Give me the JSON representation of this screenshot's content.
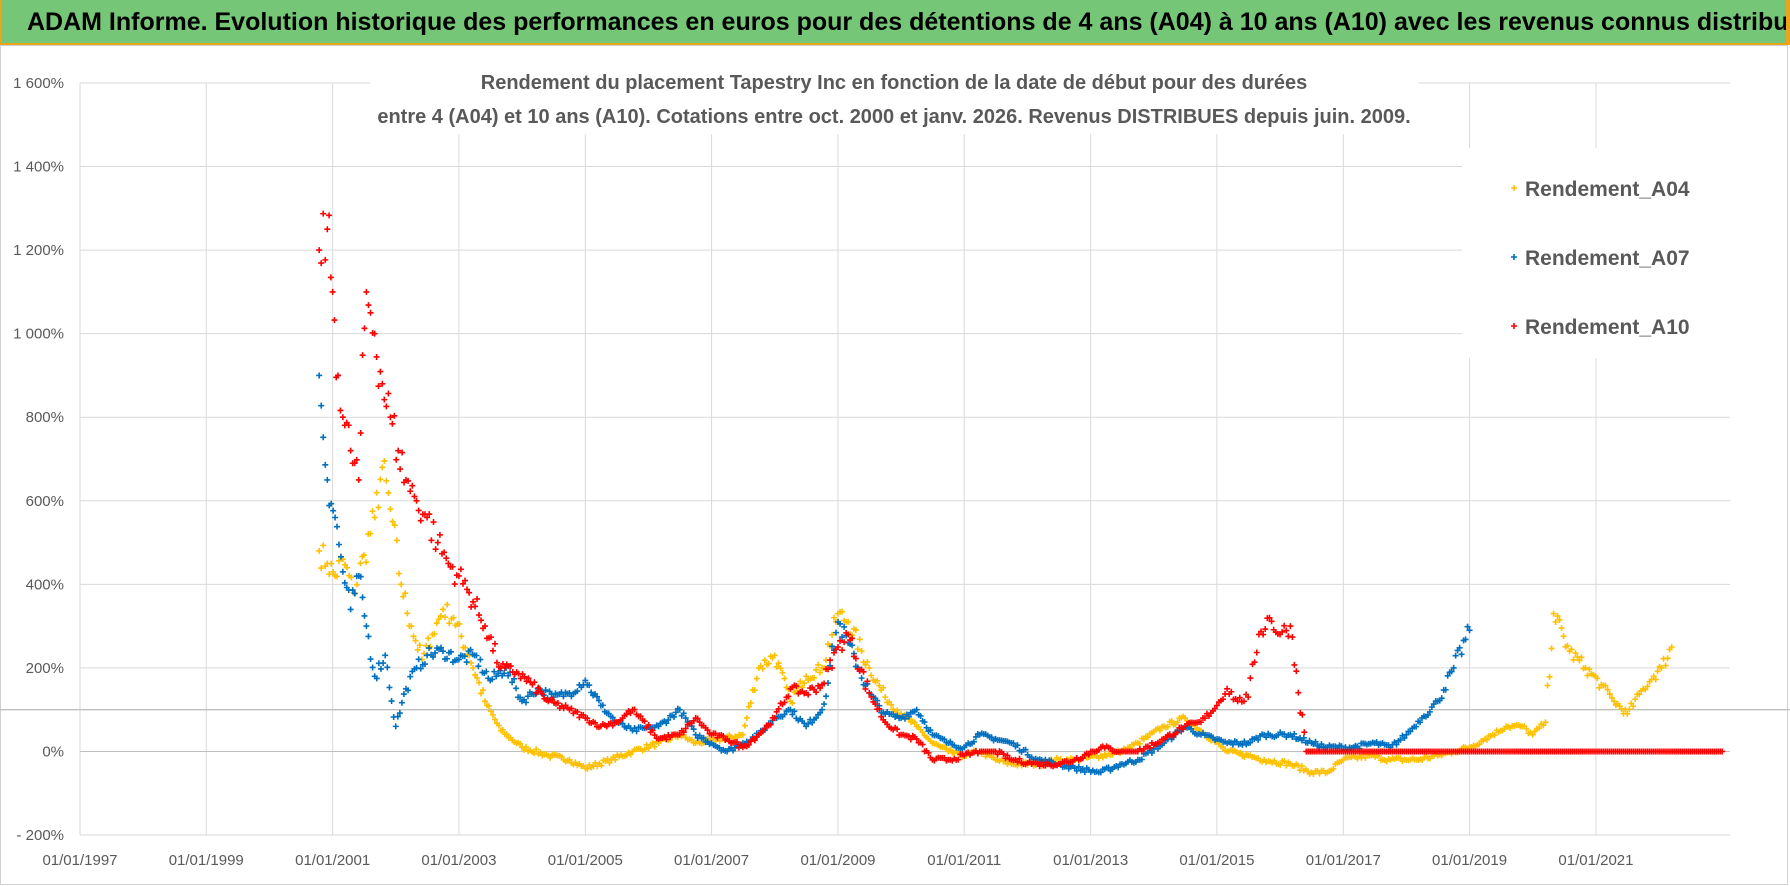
{
  "banner": {
    "title": "ADAM Informe. Evolution historique des performances en euros pour des détentions de 4 ans (A04) à 10 ans (A10) avec les revenus connus distribués"
  },
  "chart_data": {
    "type": "scatter",
    "title_line1": "Rendement du placement Tapestry Inc en fonction de la date de début pour des durées",
    "title_line2": "entre 4 (A04) et 10 ans (A10).  Cotations entre oct. 2000 et janv. 2026.  Revenus DISTRIBUES depuis juin. 2009.",
    "xlabel": "",
    "ylabel": "",
    "x_ticks": [
      "01/01/1997",
      "01/01/1999",
      "01/01/2001",
      "01/01/2003",
      "01/01/2005",
      "01/01/2007",
      "01/01/2009",
      "01/01/2011",
      "01/01/2013",
      "01/01/2015",
      "01/01/2017",
      "01/01/2019",
      "01/01/2021"
    ],
    "xlim": [
      "1997-01-01",
      "2023-02-15"
    ],
    "y_ticks": [
      "- 200%",
      "0%",
      "200%",
      "400%",
      "600%",
      "800%",
      "1 000%",
      "1 200%",
      "1 400%",
      "1 600%"
    ],
    "ylim": [
      -200,
      1600
    ],
    "grid": true,
    "legend_position": "top-right",
    "series": [
      {
        "name": "Rendement_A04",
        "color": "#ffc000",
        "marker": "+",
        "x": [
          "2000-10-15",
          "2000-12-01",
          "2001-01-15",
          "2001-03-01",
          "2001-05-01",
          "2001-06-01",
          "2001-07-01",
          "2001-09-01",
          "2001-10-15",
          "2001-12-01",
          "2002-02-01",
          "2002-04-01",
          "2002-06-01",
          "2002-08-01",
          "2002-10-01",
          "2002-12-01",
          "2003-03-01",
          "2003-06-01",
          "2003-09-01",
          "2004-01-01",
          "2004-06-01",
          "2004-10-01",
          "2005-01-01",
          "2005-06-01",
          "2005-10-01",
          "2006-03-01",
          "2006-07-01",
          "2006-10-01",
          "2007-03-01",
          "2007-07-01",
          "2007-10-01",
          "2008-01-01",
          "2008-04-01",
          "2008-07-01",
          "2008-10-01",
          "2009-01-01",
          "2009-03-01",
          "2009-07-01",
          "2009-10-01",
          "2010-01-01",
          "2010-04-01",
          "2010-07-01",
          "2010-10-01",
          "2011-01-01",
          "2011-04-01",
          "2011-07-01",
          "2011-10-01",
          "2012-03-01",
          "2012-07-01",
          "2012-10-01",
          "2013-03-01",
          "2013-07-01",
          "2013-10-01",
          "2014-03-01",
          "2014-07-01",
          "2014-10-01",
          "2015-03-01",
          "2015-07-01",
          "2015-10-01",
          "2016-03-01",
          "2016-07-01",
          "2016-10-01",
          "2017-01-01",
          "2017-06-01",
          "2017-10-01",
          "2018-03-01",
          "2018-07-01",
          "2018-10-01",
          "2019-01-01",
          "2019-04-01",
          "2019-08-01",
          "2019-11-01",
          "2020-01-01",
          "2020-03-15",
          "2020-05-01",
          "2020-08-01",
          "2020-11-01",
          "2021-02-01",
          "2021-04-15",
          "2021-07-01",
          "2021-10-01",
          "2021-12-01",
          "2022-01-15",
          "2022-03-15"
        ],
        "y": [
          480,
          450,
          420,
          460,
          380,
          420,
          470,
          560,
          680,
          580,
          400,
          300,
          220,
          280,
          340,
          320,
          230,
          120,
          50,
          10,
          -10,
          -20,
          -40,
          -20,
          0,
          20,
          40,
          20,
          30,
          40,
          200,
          230,
          120,
          180,
          200,
          330,
          310,
          200,
          130,
          90,
          60,
          20,
          0,
          -10,
          0,
          -20,
          -30,
          -30,
          -20,
          -20,
          -10,
          0,
          20,
          60,
          80,
          50,
          0,
          -10,
          -20,
          -30,
          -50,
          -50,
          -20,
          -10,
          -20,
          -20,
          -10,
          0,
          10,
          30,
          60,
          60,
          40,
          70,
          330,
          240,
          200,
          160,
          120,
          90,
          150,
          180,
          200,
          250
        ]
      },
      {
        "name": "Rendement_A07",
        "color": "#0070c0",
        "marker": "+",
        "x": [
          "2000-10-15",
          "2000-12-01",
          "2001-01-15",
          "2001-03-01",
          "2001-04-15",
          "2001-06-01",
          "2001-07-15",
          "2001-09-01",
          "2001-11-01",
          "2002-01-01",
          "2002-03-01",
          "2002-05-01",
          "2002-07-01",
          "2002-10-01",
          "2003-01-01",
          "2003-04-01",
          "2003-07-01",
          "2003-10-01",
          "2004-01-01",
          "2004-04-01",
          "2004-07-01",
          "2004-10-01",
          "2005-01-01",
          "2005-04-01",
          "2005-07-01",
          "2005-10-01",
          "2006-03-01",
          "2006-07-01",
          "2006-10-01",
          "2007-01-01",
          "2007-04-01",
          "2007-07-01",
          "2007-10-01",
          "2008-01-01",
          "2008-04-01",
          "2008-07-01",
          "2008-10-01",
          "2009-01-01",
          "2009-03-01",
          "2009-07-01",
          "2009-10-01",
          "2010-01-01",
          "2010-04-01",
          "2010-07-01",
          "2010-10-01",
          "2011-01-01",
          "2011-04-01",
          "2011-07-01",
          "2011-10-01",
          "2012-03-01",
          "2012-07-01",
          "2012-10-01",
          "2013-03-01",
          "2013-07-01",
          "2013-10-01",
          "2014-03-01",
          "2014-07-01",
          "2014-10-01",
          "2015-03-01",
          "2015-07-01",
          "2015-10-01",
          "2016-03-01",
          "2016-07-01",
          "2016-10-01",
          "2017-03-01",
          "2017-07-01",
          "2017-10-01",
          "2018-01-01",
          "2018-04-01",
          "2018-07-01",
          "2018-10-01",
          "2019-01-01"
        ],
        "y": [
          900,
          650,
          560,
          430,
          340,
          420,
          300,
          180,
          230,
          60,
          150,
          200,
          230,
          240,
          220,
          230,
          170,
          200,
          120,
          150,
          130,
          140,
          170,
          110,
          70,
          50,
          60,
          100,
          40,
          20,
          0,
          20,
          40,
          80,
          100,
          60,
          100,
          310,
          260,
          140,
          90,
          80,
          100,
          40,
          20,
          10,
          40,
          30,
          20,
          -20,
          -30,
          -40,
          -50,
          -30,
          -20,
          20,
          60,
          40,
          20,
          20,
          40,
          40,
          20,
          10,
          10,
          20,
          10,
          40,
          80,
          120,
          200,
          290
        ]
      },
      {
        "name": "Rendement_A10",
        "color": "#ff0000",
        "marker": "+",
        "x": [
          "2000-10-15",
          "2000-12-01",
          "2001-01-01",
          "2001-02-01",
          "2001-03-01",
          "2001-04-15",
          "2001-06-01",
          "2001-07-15",
          "2001-09-01",
          "2001-10-15",
          "2001-12-01",
          "2002-01-15",
          "2002-03-01",
          "2002-05-01",
          "2002-07-01",
          "2002-09-01",
          "2002-11-01",
          "2003-01-01",
          "2003-03-01",
          "2003-06-01",
          "2003-09-01",
          "2003-12-01",
          "2004-03-01",
          "2004-06-01",
          "2004-10-01",
          "2005-01-01",
          "2005-04-01",
          "2005-07-01",
          "2005-10-01",
          "2006-03-01",
          "2006-07-01",
          "2006-10-01",
          "2007-01-01",
          "2007-04-01",
          "2007-07-01",
          "2007-10-01",
          "2008-01-01",
          "2008-04-01",
          "2008-07-01",
          "2008-10-01",
          "2009-01-01",
          "2009-03-01",
          "2009-07-01",
          "2009-10-01",
          "2010-01-01",
          "2010-04-01",
          "2010-07-01",
          "2010-10-01",
          "2011-01-01",
          "2011-04-01",
          "2011-07-01",
          "2011-10-01",
          "2012-03-01",
          "2012-07-01",
          "2012-10-01",
          "2013-03-01",
          "2013-07-01",
          "2013-10-01",
          "2014-03-01",
          "2014-07-01",
          "2014-10-01",
          "2015-01-01",
          "2015-03-01",
          "2015-05-01",
          "2015-07-01",
          "2015-09-01",
          "2015-11-01",
          "2016-01-01",
          "2016-03-01",
          "2016-06-01",
          "2017-01-01",
          "2018-01-01",
          "2019-01-01",
          "2020-01-01",
          "2021-01-01",
          "2022-01-01",
          "2023-01-01"
        ],
        "y": [
          1200,
          1250,
          1100,
          900,
          800,
          720,
          650,
          1100,
          1000,
          880,
          800,
          720,
          650,
          600,
          560,
          500,
          450,
          420,
          380,
          300,
          200,
          190,
          160,
          120,
          100,
          80,
          60,
          70,
          100,
          30,
          40,
          80,
          40,
          30,
          10,
          40,
          80,
          150,
          140,
          160,
          250,
          280,
          140,
          70,
          40,
          30,
          -20,
          -20,
          -10,
          0,
          0,
          -20,
          -30,
          -30,
          -20,
          10,
          0,
          0,
          30,
          60,
          70,
          110,
          150,
          120,
          130,
          280,
          320,
          280,
          300,
          0,
          0,
          0,
          0,
          0,
          0,
          0,
          0
        ]
      }
    ]
  }
}
